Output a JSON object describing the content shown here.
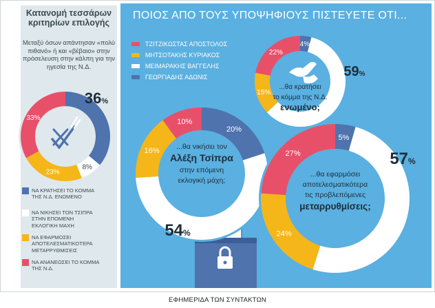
{
  "panel": {
    "title": "Κατανομή τεσσάρων κριτηρίων επιλογής",
    "subtitle": "Μεταξύ όσων απάντησαν «πολύ πιθανό» ή και «βέβαιο» στην πρόσελευση στην κάλπη για την ηγεσία της Ν.Δ.",
    "criteria_legend": [
      {
        "label": "ΝΑ ΚΡΑΤΗΣΕΙ ΤΟ ΚΟΜΜΑ ΤΗΣ Ν.Δ. ΕΝΩΜΕΝΟ",
        "color": "#4e73ad"
      },
      {
        "label": "ΝΑ ΝΙΚΗΣΕΙ ΤΟΝ ΤΣΙΠΡΑ ΣΤΗΝ ΕΠΟΜΕΝΗ ΕΚΛΟΓΙΚΗ ΜΑΧΗ",
        "color": "#ffffff"
      },
      {
        "label": "ΝΑ ΕΦΑΡΜΟΣΕΙ ΑΠΟΤΕΛΕΣΜΑΤΙΚΟΤΕΡΑ ΜΕΤΑΡΡΥΘΜΙΣΕΙΣ",
        "color": "#f5b61a"
      },
      {
        "label": "ΝΑ ΑΝΑΝΕΩΣΕΙ ΤΟ ΚΟΜΜΑ ΤΗΣ Ν.Δ.",
        "color": "#e8506a"
      }
    ]
  },
  "main": {
    "title": "ΠΟΙΟΣ ΑΠΟ ΤΟΥΣ ΥΠΟΨΗΦΙΟΥΣ ΠΙΣΤΕΥΕΤΕ ΟΤΙ...",
    "legend": [
      {
        "label": "ΤΖΙΤΖΙΚΩΣΤΑΣ ΑΠΟΣΤΟΛΟΣ",
        "color": "#e8506a"
      },
      {
        "label": "ΜΗΤΣΟΤΑΚΗΣ ΚΥΡΙΑΚΟΣ",
        "color": "#f5b61a"
      },
      {
        "label": "ΜΕΙΜΑΡΑΚΗΣ ΒΑΓΓΕΛΗΣ",
        "color": "#ffffff"
      },
      {
        "label": "ΓΕΩΡΓΙΑΔΗΣ ΑΔΩΝΙΣ",
        "color": "#4e73ad"
      }
    ]
  },
  "caption": "ΕΦΗΜΕΡΙΔΑ ΤΩΝ ΣΥΝΤΑΚΤΩΝ",
  "colors": {
    "red": "#e8506a",
    "yellow": "#f5b61a",
    "white": "#ffffff",
    "blue": "#4e73ad"
  },
  "chart_data": [
    {
      "type": "pie",
      "variant": "donut",
      "title": "Κατανομή τεσσάρων κριτηρίων επιλογής",
      "icon": "ballot-check-icon",
      "labels": [
        "ΝΑ ΚΡΑΤΗΣΕΙ ΤΟ ΚΟΜΜΑ ΤΗΣ Ν.Δ. ΕΝΩΜΕΝΟ",
        "ΝΑ ΝΙΚΗΣΕΙ ΤΟΝ ΤΣΙΠΡΑ ΣΤΗΝ ΕΠΟΜΕΝΗ ΕΚΛΟΓΙΚΗ ΜΑΧΗ",
        "ΝΑ ΕΦΑΡΜΟΣΕΙ ΑΠΟΤΕΛΕΣΜΑΤΙΚΟΤΕΡΑ ΜΕΤΑΡΡΥΘΜΙΣΕΙΣ",
        "ΝΑ ΑΝΑΝΕΩΣΕΙ ΤΟ ΚΟΜΜΑ ΤΗΣ Ν.Δ."
      ],
      "values": [
        36,
        8,
        23,
        33
      ],
      "colors": [
        "#4e73ad",
        "#ffffff",
        "#f5b61a",
        "#e8506a"
      ]
    },
    {
      "type": "pie",
      "variant": "donut",
      "title_lines": [
        "...θα νικήσει τον",
        "Αλέξη Τσίπρα",
        "στην επόμενη",
        "εκλογική μάχη;"
      ],
      "labels": [
        "ΓΕΩΡΓΙΑΔΗΣ ΑΔΩΝΙΣ",
        "ΜΕΙΜΑΡΑΚΗΣ ΒΑΓΓΕΛΗΣ",
        "ΜΗΤΣΟΤΑΚΗΣ ΚΥΡΙΑΚΟΣ",
        "ΤΖΙΤΖΙΚΩΣΤΑΣ ΑΠΟΣΤΟΛΟΣ"
      ],
      "values": [
        20,
        54,
        16,
        10
      ],
      "colors": [
        "#4e73ad",
        "#ffffff",
        "#f5b61a",
        "#e8506a"
      ]
    },
    {
      "type": "pie",
      "variant": "donut",
      "title_lines": [
        "...θα κρατήσει",
        "το κόμμα της Ν.Δ.",
        "ενωμένο;"
      ],
      "icon": "handshake-icon",
      "labels": [
        "ΓΕΩΡΓΙΑΔΗΣ ΑΔΩΝΙΣ",
        "ΜΕΙΜΑΡΑΚΗΣ ΒΑΓΓΕΛΗΣ",
        "ΜΗΤΣΟΤΑΚΗΣ ΚΥΡΙΑΚΟΣ",
        "ΤΖΙΤΖΙΚΩΣΤΑΣ ΑΠΟΣΤΟΛΟΣ"
      ],
      "values": [
        4,
        59,
        15,
        22
      ],
      "colors": [
        "#4e73ad",
        "#ffffff",
        "#f5b61a",
        "#e8506a"
      ]
    },
    {
      "type": "pie",
      "variant": "donut",
      "title_lines": [
        "...θα εφαρμόσει",
        "αποτελεσματικότερα",
        "τις προβλεπόμενες",
        "μεταρρυθμίσεις;"
      ],
      "labels": [
        "ΓΕΩΡΓΙΑΔΗΣ ΑΔΩΝΙΣ",
        "ΜΕΙΜΑΡΑΚΗΣ ΒΑΓΓΕΛΗΣ",
        "ΜΗΤΣΟΤΑΚΗΣ ΚΥΡΙΑΚΟΣ",
        "ΤΖΙΤΖΙΚΩΣΤΑΣ ΑΠΟΣΤΟΛΟΣ"
      ],
      "values": [
        5,
        57,
        24,
        27
      ],
      "colors": [
        "#4e73ad",
        "#ffffff",
        "#f5b61a",
        "#e8506a"
      ]
    }
  ]
}
